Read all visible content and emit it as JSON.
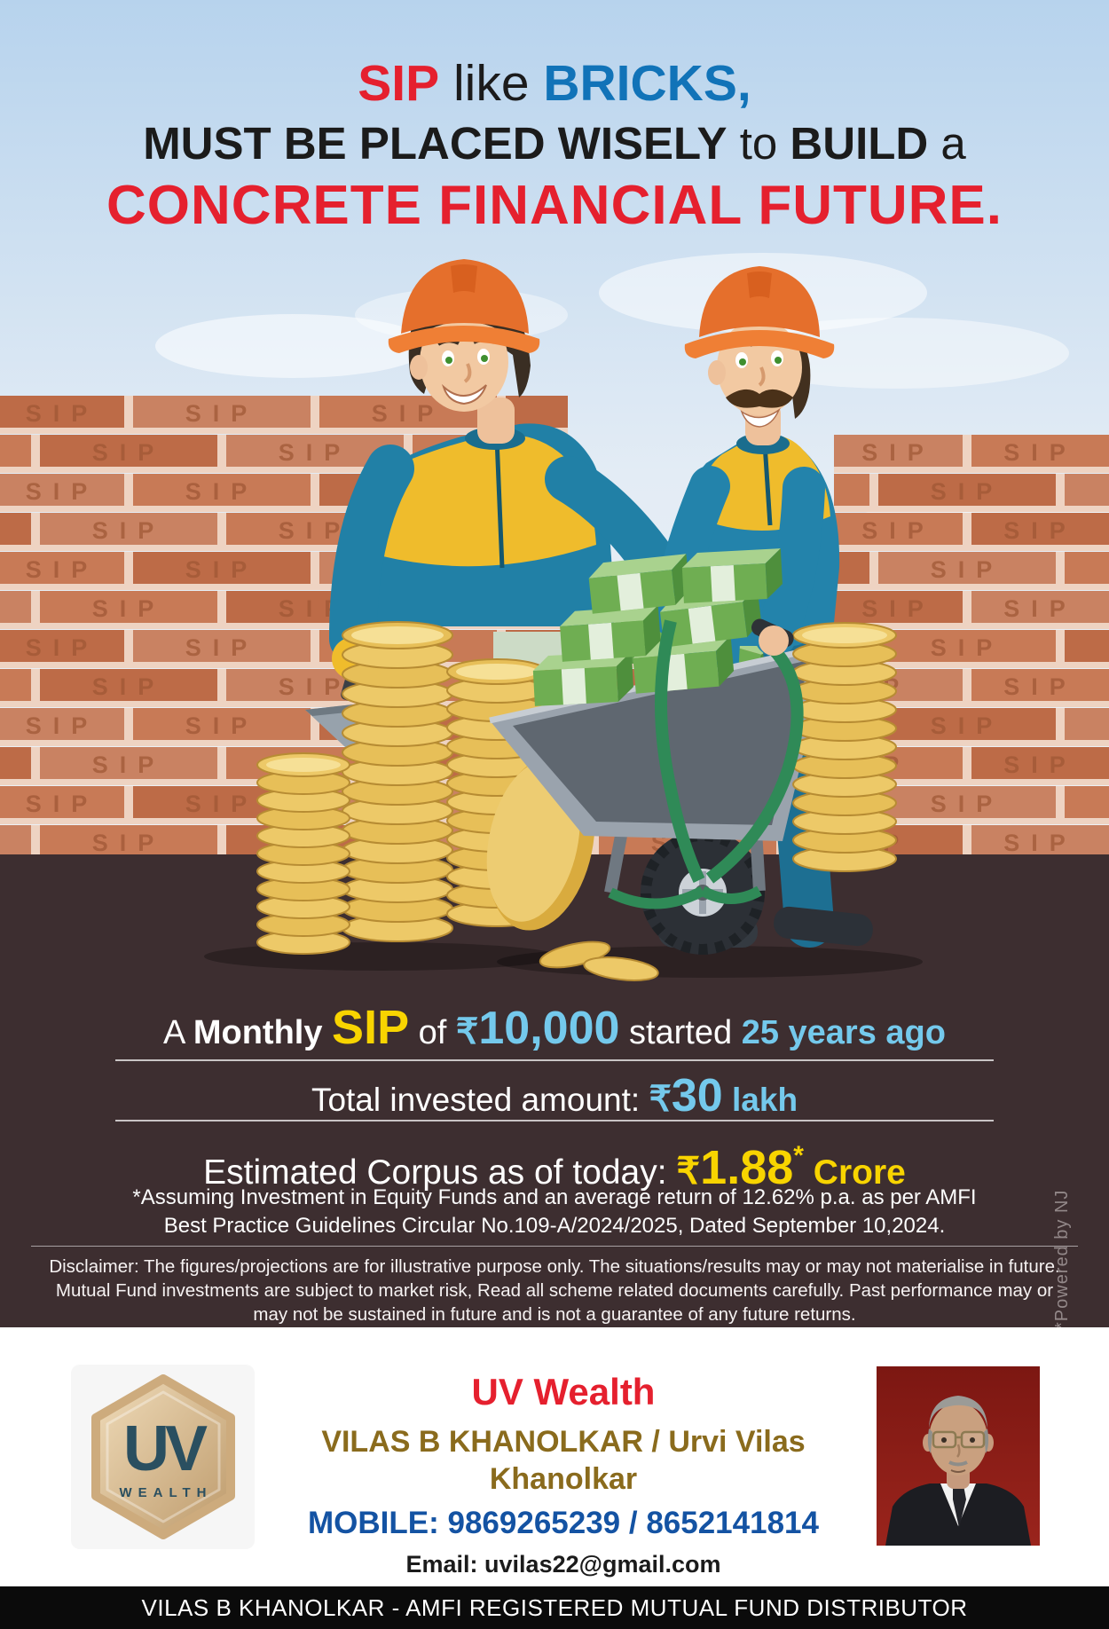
{
  "poster": {
    "headline": {
      "l1a": "SIP",
      "l1b": " like ",
      "l1c": "BRICKS,",
      "l2a": "MUST BE PLACED WISELY",
      "l2b": " to ",
      "l2c": "BUILD",
      "l2d": " a",
      "l3": "CONCRETE FINANCIAL FUTURE."
    },
    "wall_brick_label": "SIP",
    "stats": {
      "line1": {
        "a": "A ",
        "b": "Monthly ",
        "c": "SIP",
        "d": " of ",
        "cur": "₹",
        "amount": "10,000",
        "e": " started ",
        "f": "25 years ago"
      },
      "line2": {
        "a": "Total invested amount: ",
        "cur": "₹",
        "amount": "30",
        "b": " lakh"
      },
      "line3": {
        "a": "Estimated Corpus as of today: ",
        "cur": "₹",
        "amount": "1.88",
        "star": "*",
        "b": " Crore"
      }
    },
    "footnote_line1": "*Assuming Investment in Equity Funds and an average return of 12.62% p.a. as per AMFI",
    "footnote_line2": "Best Practice  Guidelines Circular No.109-A/2024/2025, Dated September 10,2024.",
    "disclaimer": "Disclaimer: The figures/projections are for illustrative purpose only. The situations/results may or may not materialise in future. Mutual Fund investments are subject to market risk, Read all scheme related documents carefully. Past performance may or may not be sustained in future and is not a guarantee of any future returns.",
    "powered_by": "*Powered by NJ",
    "footer": {
      "brand": "UV Wealth",
      "logo_monogram": "UV",
      "logo_wealth": "WEALTH",
      "names": "VILAS B KHANOLKAR / Urvi Vilas Khanolkar",
      "mobile": "MOBILE: 9869265239 / 8652141814",
      "email": "Email: uvilas22@gmail.com"
    },
    "bottom_bar": "VILAS B KHANOLKAR - AMFI REGISTERED MUTUAL FUND DISTRIBUTOR",
    "colors": {
      "headline_red": "#e5202e",
      "headline_blue": "#1173b8",
      "accent_yellow": "#f8d400",
      "accent_light_blue": "#74c9ec",
      "panel_bg": "#3d2e30",
      "brick": "#c87a56",
      "mortar": "#eed3c2",
      "name_gold": "#8a6b1d",
      "mobile_blue": "#1453a3",
      "bar_bg": "#0b0b0b"
    }
  }
}
